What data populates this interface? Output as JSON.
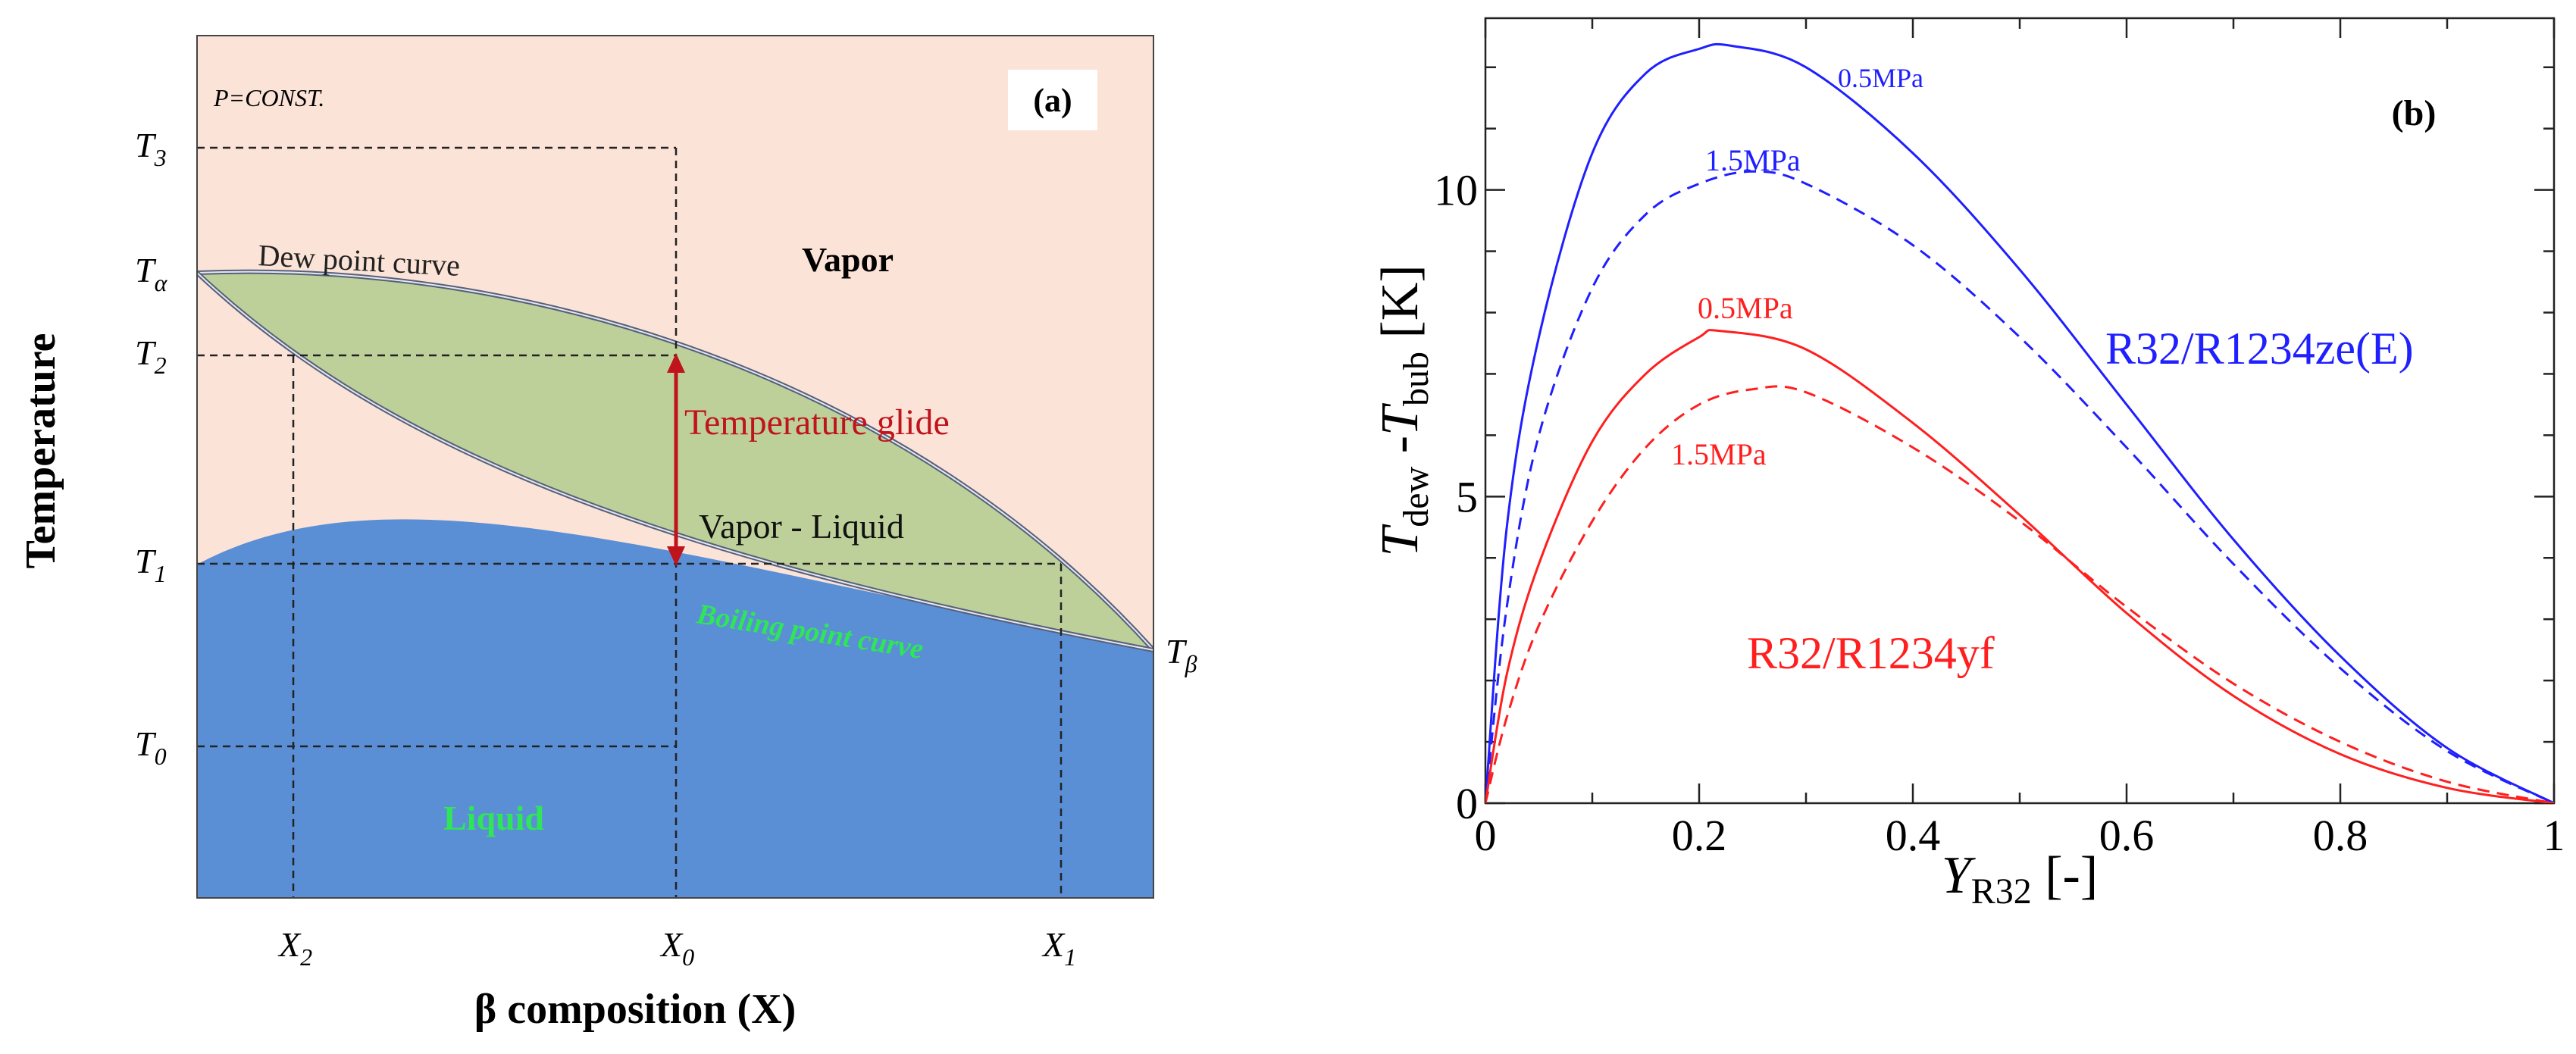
{
  "panel_a": {
    "label": "(a)",
    "condition": "P=CONST.",
    "ylabel": "Temperature",
    "xlabel": "β composition (X)",
    "region_vapor": "Vapor",
    "region_liquid": "Liquid",
    "region_two_phase": "Vapor - Liquid",
    "dew_curve_label": "Dew point curve",
    "boiling_curve_label": "Boiling point curve",
    "glide_label": "Temperature glide",
    "y_ticks": [
      {
        "base": "T",
        "sub": "3"
      },
      {
        "base": "T",
        "sub": "α"
      },
      {
        "base": "T",
        "sub": "2"
      },
      {
        "base": "T",
        "sub": "1"
      },
      {
        "base": "T",
        "sub": "0"
      }
    ],
    "right_label": {
      "base": "T",
      "sub": "β"
    },
    "x_ticks": [
      {
        "base": "X",
        "sub": "2"
      },
      {
        "base": "X",
        "sub": "0"
      },
      {
        "base": "X",
        "sub": "1"
      }
    ],
    "colors": {
      "vapor": "#fbe3d7",
      "two_phase": "#bdd09a",
      "liquid": "#5a8fd6",
      "glide": "#c0141c",
      "boiling_label": "#2ee657"
    }
  },
  "chart_data": {
    "type": "line",
    "label": "(b)",
    "title": "",
    "xlabel": {
      "base": "Y",
      "sub": "R32",
      "rest": " [-]"
    },
    "ylabel": {
      "t1": "T",
      "s1": "dew",
      "mid": " -",
      "t2": "T",
      "s2": "bub",
      "rest": " [K]"
    },
    "xlim": [
      0,
      1
    ],
    "ylim": [
      0,
      12.8
    ],
    "x_ticks": [
      "0",
      "0.2",
      "0.4",
      "0.6",
      "0.8",
      "1"
    ],
    "y_ticks": [
      "0",
      "5",
      "10"
    ],
    "groups": [
      {
        "name": "R32/R1234ze(E)",
        "color": "#1f1fff"
      },
      {
        "name": "R32/R1234yf",
        "color": "#ff1f1f"
      }
    ],
    "series": [
      {
        "name": "R32/R1234ze(E) 0.5MPa",
        "pressure": "0.5MPa",
        "color": "#1f1fff",
        "dash": false,
        "x": [
          0,
          0.02,
          0.05,
          0.1,
          0.15,
          0.2,
          0.23,
          0.3,
          0.4,
          0.5,
          0.6,
          0.7,
          0.8,
          0.9,
          1.0
        ],
        "y": [
          0,
          4.5,
          7.6,
          10.6,
          11.9,
          12.3,
          12.35,
          12.0,
          10.6,
          8.7,
          6.5,
          4.3,
          2.4,
          0.9,
          0
        ]
      },
      {
        "name": "R32/R1234ze(E) 1.5MPa",
        "pressure": "1.5MPa",
        "color": "#1f1fff",
        "dash": true,
        "x": [
          0,
          0.02,
          0.05,
          0.1,
          0.15,
          0.2,
          0.25,
          0.3,
          0.4,
          0.5,
          0.6,
          0.7,
          0.8,
          0.9,
          1.0
        ],
        "y": [
          0,
          3.2,
          6.0,
          8.4,
          9.6,
          10.1,
          10.3,
          10.1,
          9.1,
          7.6,
          5.8,
          3.9,
          2.2,
          0.85,
          0
        ]
      },
      {
        "name": "R32/R1234yf 0.5MPa",
        "pressure": "0.5MPa",
        "color": "#ff1f1f",
        "dash": false,
        "x": [
          0,
          0.02,
          0.05,
          0.1,
          0.15,
          0.2,
          0.22,
          0.3,
          0.4,
          0.5,
          0.6,
          0.7,
          0.8,
          0.9,
          1.0
        ],
        "y": [
          0,
          2.1,
          3.9,
          5.9,
          7.0,
          7.6,
          7.7,
          7.4,
          6.2,
          4.7,
          3.1,
          1.75,
          0.8,
          0.25,
          0
        ]
      },
      {
        "name": "R32/R1234yf 1.5MPa",
        "pressure": "1.5MPa",
        "color": "#ff1f1f",
        "dash": true,
        "x": [
          0,
          0.02,
          0.05,
          0.1,
          0.15,
          0.2,
          0.25,
          0.3,
          0.4,
          0.5,
          0.6,
          0.7,
          0.8,
          0.9,
          1.0
        ],
        "y": [
          0,
          1.4,
          2.9,
          4.6,
          5.8,
          6.5,
          6.75,
          6.7,
          5.8,
          4.6,
          3.2,
          1.95,
          1.0,
          0.35,
          0
        ]
      }
    ]
  }
}
